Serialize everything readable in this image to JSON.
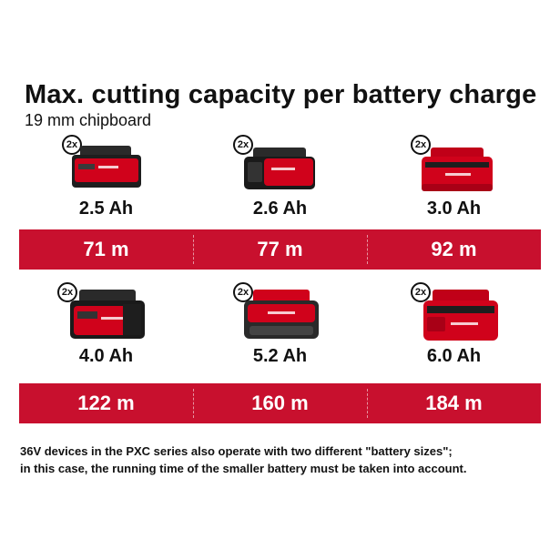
{
  "header": {
    "title": "Max. cutting capacity per battery charge",
    "subtitle": "19 mm chipboard"
  },
  "rows": [
    {
      "items": [
        {
          "quantity": "2x",
          "capacity": "2.5 Ah",
          "distance": "71 m",
          "icon": "battery-2.5ah-icon"
        },
        {
          "quantity": "2x",
          "capacity": "2.6 Ah",
          "distance": "77 m",
          "icon": "battery-2.6ah-icon"
        },
        {
          "quantity": "2x",
          "capacity": "3.0 Ah",
          "distance": "92 m",
          "icon": "battery-3.0ah-icon"
        }
      ]
    },
    {
      "items": [
        {
          "quantity": "2x",
          "capacity": "4.0 Ah",
          "distance": "122 m",
          "icon": "battery-4.0ah-icon"
        },
        {
          "quantity": "2x",
          "capacity": "5.2 Ah",
          "distance": "160 m",
          "icon": "battery-5.2ah-icon"
        },
        {
          "quantity": "2x",
          "capacity": "6.0 Ah",
          "distance": "184 m",
          "icon": "battery-6.0ah-icon"
        }
      ]
    }
  ],
  "footnote": {
    "line1": "36V devices in the PXC series also operate with two different \"battery sizes\";",
    "line2": "in this case, the running time of the smaller battery must be taken into account."
  },
  "colors": {
    "band": "#c8102e",
    "battery_red": "#d0021b",
    "battery_dark": "#222222"
  }
}
